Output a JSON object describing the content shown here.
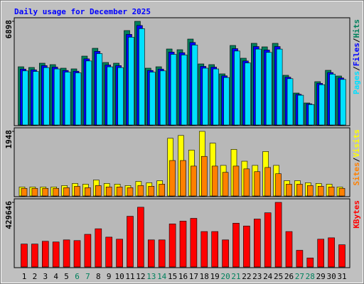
{
  "chart_data": {
    "type": "bar",
    "title": "Daily usage for December 2025",
    "separator": "/",
    "categories": [
      "1",
      "2",
      "3",
      "4",
      "5",
      "6",
      "7",
      "8",
      "9",
      "10",
      "11",
      "12",
      "13",
      "14",
      "15",
      "16",
      "17",
      "18",
      "19",
      "20",
      "21",
      "22",
      "23",
      "24",
      "25",
      "26",
      "27",
      "28",
      "29",
      "30",
      "31"
    ],
    "category_colors": [
      "#000000",
      "#000000",
      "#000000",
      "#000000",
      "#000000",
      "#00805c",
      "#00805c",
      "#000000",
      "#000000",
      "#000000",
      "#000000",
      "#000000",
      "#00805c",
      "#00805c",
      "#000000",
      "#000000",
      "#000000",
      "#000000",
      "#000000",
      "#00805c",
      "#00805c",
      "#000000",
      "#000000",
      "#000000",
      "#000000",
      "#000000",
      "#00805c",
      "#00805c",
      "#000000",
      "#000000",
      "#000000"
    ],
    "panels": [
      {
        "ylim": [
          0,
          6898
        ],
        "yticks": [
          6898
        ],
        "series": [
          {
            "name": "Hits",
            "color": "#00805c",
            "values": [
              3874,
              3827,
              4111,
              4016,
              3780,
              3733,
              4583,
              5103,
              4158,
              4111,
              6284,
              6898,
              3780,
              3874,
              5056,
              5009,
              5717,
              4064,
              4016,
              3402,
              5292,
              4442,
              5434,
              5198,
              5434,
              3308,
              2126,
              1465,
              2882,
              3638,
              3260
            ]
          },
          {
            "name": "Files",
            "color": "#0000ff",
            "values": [
              3720,
              3670,
              3950,
              3850,
              3630,
              3580,
              4400,
              4900,
              3990,
              3950,
              6030,
              6620,
              3630,
              3720,
              4850,
              4810,
              5490,
              3900,
              3850,
              3270,
              5080,
              4260,
              5220,
              4990,
              5220,
              3180,
              2040,
              1410,
              2770,
              3490,
              3130
            ]
          },
          {
            "name": "Pages",
            "color": "#00e0ff",
            "values": [
              3600,
              3560,
              3820,
              3730,
              3520,
              3470,
              4260,
              4750,
              3870,
              3820,
              5840,
              6410,
              3520,
              3600,
              4700,
              4660,
              5320,
              3780,
              3730,
              3160,
              4920,
              4130,
              5050,
              4830,
              5050,
              3080,
              1980,
              1360,
              2680,
              3380,
              3030
            ]
          }
        ]
      },
      {
        "ylim": [
          0,
          1948
        ],
        "yticks": [
          1948
        ],
        "series": [
          {
            "name": "Visits",
            "color": "#ffff00",
            "values": [
              272,
              272,
              272,
              272,
              314,
              377,
              356,
              482,
              377,
              356,
              314,
              440,
              398,
              461,
              1739,
              1823,
              1383,
              1948,
              1592,
              922,
              1404,
              1048,
              922,
              1341,
              922,
              461,
              461,
              398,
              377,
              356,
              272
            ]
          },
          {
            "name": "Sites",
            "color": "#ff8000",
            "values": [
              230,
              230,
              230,
              230,
              250,
              290,
              250,
              314,
              272,
              272,
              251,
              314,
              293,
              356,
              1069,
              1069,
              901,
              1194,
              901,
              712,
              901,
              817,
              733,
              859,
              670,
              356,
              356,
              314,
              293,
              272,
              230
            ]
          }
        ]
      },
      {
        "ylim": [
          0,
          429646
        ],
        "yticks": [
          429646
        ],
        "series": [
          {
            "name": "KBytes",
            "color": "#ff0000",
            "values": [
              152460,
              152460,
              170940,
              166320,
              180180,
              175560,
              217140,
              254100,
              198660,
              184800,
              337260,
              397320,
              180180,
              180180,
              286440,
              304920,
              323400,
              235620,
              235620,
              180180,
              291060,
              272580,
              318780,
              360360,
              429646,
              235620,
              110880,
              60060,
              184800,
              194040,
              147840
            ]
          }
        ]
      }
    ]
  }
}
